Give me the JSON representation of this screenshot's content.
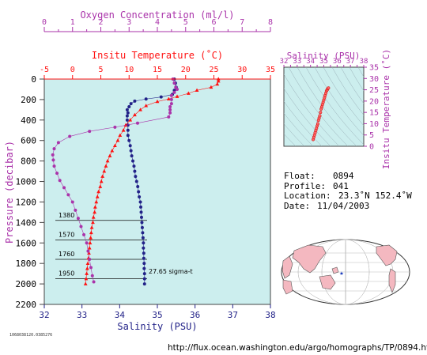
{
  "colors": {
    "oxygen": "#aa33aa",
    "temperature": "#ff1111",
    "salinity": "#222288",
    "panel_bg": "#cceeee",
    "land": "#f4b8c0"
  },
  "chart_data": [
    {
      "type": "scatter",
      "axes": {
        "oxygen": {
          "label": "Oxygen Concentration (ml/l)",
          "range": [
            0,
            8
          ],
          "ticks": [
            "0",
            "1",
            "2",
            "3",
            "4",
            "5",
            "6",
            "7",
            "8"
          ]
        },
        "temperature": {
          "label": "Insitu Temperature (˚C)",
          "range": [
            -5,
            35
          ],
          "ticks": [
            "-5",
            "0",
            "5",
            "10",
            "15",
            "20",
            "25",
            "30",
            "35"
          ]
        },
        "salinity": {
          "label": "Salinity (PSU)",
          "range": [
            32,
            38
          ],
          "ticks": [
            "32",
            "33",
            "34",
            "35",
            "36",
            "37",
            "38"
          ]
        },
        "pressure": {
          "label": "Pressure (decibar)",
          "range": [
            0,
            2200
          ],
          "reversed": true,
          "ticks": [
            "0",
            "200",
            "400",
            "600",
            "800",
            "1000",
            "1200",
            "1400",
            "1600",
            "1800",
            "2000",
            "2200"
          ]
        }
      },
      "series": [
        {
          "key": "salinity",
          "marker": "circle",
          "points": [
            [
              35.45,
              0
            ],
            [
              35.48,
              40
            ],
            [
              35.5,
              80
            ],
            [
              35.45,
              110
            ],
            [
              35.4,
              150
            ],
            [
              35.1,
              175
            ],
            [
              34.7,
              195
            ],
            [
              34.4,
              215
            ],
            [
              34.3,
              240
            ],
            [
              34.25,
              270
            ],
            [
              34.2,
              300
            ],
            [
              34.22,
              330
            ],
            [
              34.2,
              360
            ],
            [
              34.2,
              400
            ],
            [
              34.22,
              450
            ],
            [
              34.22,
              500
            ],
            [
              34.22,
              550
            ],
            [
              34.25,
              600
            ],
            [
              34.28,
              650
            ],
            [
              34.3,
              700
            ],
            [
              34.32,
              750
            ],
            [
              34.35,
              800
            ],
            [
              34.38,
              850
            ],
            [
              34.4,
              900
            ],
            [
              34.42,
              950
            ],
            [
              34.45,
              1000
            ],
            [
              34.48,
              1050
            ],
            [
              34.5,
              1100
            ],
            [
              34.52,
              1150
            ],
            [
              34.55,
              1200
            ],
            [
              34.56,
              1250
            ],
            [
              34.57,
              1300
            ],
            [
              34.58,
              1350
            ],
            [
              34.59,
              1400
            ],
            [
              34.6,
              1450
            ],
            [
              34.61,
              1500
            ],
            [
              34.62,
              1550
            ],
            [
              34.63,
              1600
            ],
            [
              34.63,
              1650
            ],
            [
              34.64,
              1700
            ],
            [
              34.64,
              1750
            ],
            [
              34.65,
              1800
            ],
            [
              34.65,
              1850
            ],
            [
              34.66,
              1900
            ],
            [
              34.66,
              1950
            ],
            [
              34.66,
              2000
            ]
          ]
        },
        {
          "key": "temperature",
          "marker": "triangle",
          "points": [
            [
              25.8,
              0
            ],
            [
              25.8,
              20
            ],
            [
              25.6,
              50
            ],
            [
              24.5,
              80
            ],
            [
              22,
              110
            ],
            [
              20.5,
              140
            ],
            [
              18.5,
              170
            ],
            [
              17,
              195
            ],
            [
              15,
              220
            ],
            [
              13,
              260
            ],
            [
              12,
              300
            ],
            [
              11,
              350
            ],
            [
              10.2,
              400
            ],
            [
              9.4,
              450
            ],
            [
              9,
              500
            ],
            [
              8.4,
              550
            ],
            [
              8,
              600
            ],
            [
              7.5,
              650
            ],
            [
              7,
              700
            ],
            [
              6.6,
              750
            ],
            [
              6.2,
              800
            ],
            [
              5.9,
              850
            ],
            [
              5.6,
              900
            ],
            [
              5.3,
              950
            ],
            [
              5.1,
              1000
            ],
            [
              4.9,
              1050
            ],
            [
              4.6,
              1100
            ],
            [
              4.4,
              1150
            ],
            [
              4.2,
              1200
            ],
            [
              4,
              1250
            ],
            [
              3.9,
              1300
            ],
            [
              3.7,
              1350
            ],
            [
              3.6,
              1400
            ],
            [
              3.4,
              1450
            ],
            [
              3.3,
              1500
            ],
            [
              3.2,
              1550
            ],
            [
              3.1,
              1600
            ],
            [
              3,
              1650
            ],
            [
              2.9,
              1700
            ],
            [
              2.8,
              1750
            ],
            [
              2.7,
              1800
            ],
            [
              2.6,
              1850
            ],
            [
              2.5,
              1900
            ],
            [
              2.4,
              1950
            ],
            [
              2.3,
              2000
            ]
          ]
        },
        {
          "key": "oxygen",
          "marker": "circle",
          "points": [
            [
              4.55,
              0
            ],
            [
              4.6,
              40
            ],
            [
              4.65,
              80
            ],
            [
              4.7,
              100
            ],
            [
              4.6,
              130
            ],
            [
              4.5,
              160
            ],
            [
              4.5,
              200
            ],
            [
              4.5,
              240
            ],
            [
              4.45,
              270
            ],
            [
              4.45,
              300
            ],
            [
              4.45,
              330
            ],
            [
              4.4,
              370
            ],
            [
              3.3,
              430
            ],
            [
              2.5,
              470
            ],
            [
              1.6,
              510
            ],
            [
              0.9,
              560
            ],
            [
              0.5,
              620
            ],
            [
              0.35,
              680
            ],
            [
              0.3,
              740
            ],
            [
              0.32,
              790
            ],
            [
              0.35,
              850
            ],
            [
              0.45,
              920
            ],
            [
              0.55,
              990
            ],
            [
              0.7,
              1060
            ],
            [
              0.85,
              1130
            ],
            [
              1.0,
              1200
            ],
            [
              1.1,
              1280
            ],
            [
              1.2,
              1360
            ],
            [
              1.3,
              1440
            ],
            [
              1.4,
              1520
            ],
            [
              1.5,
              1600
            ],
            [
              1.55,
              1680
            ],
            [
              1.6,
              1760
            ],
            [
              1.65,
              1840
            ],
            [
              1.7,
              1920
            ],
            [
              1.75,
              1980
            ]
          ]
        }
      ],
      "isopycnals": [
        {
          "label": "1380",
          "pressure": 1380
        },
        {
          "label": "1570",
          "pressure": 1570
        },
        {
          "label": "1760",
          "pressure": 1760
        },
        {
          "label": "1950",
          "pressure": 1950
        }
      ],
      "isopycnal_note": "27.65 sigma-t"
    },
    {
      "type": "scatter",
      "axes": {
        "salinity": {
          "label": "Salinity (PSU)",
          "range": [
            32,
            38
          ],
          "ticks": [
            "32",
            "33",
            "34",
            "35",
            "36",
            "37",
            "38"
          ]
        },
        "temperature": {
          "label": "Insitu Temperature (˚C)",
          "range": [
            0,
            35
          ],
          "ticks": [
            "0",
            "5",
            "10",
            "15",
            "20",
            "25",
            "30",
            "35"
          ]
        }
      },
      "points": [
        [
          34.2,
          3
        ],
        [
          34.25,
          4
        ],
        [
          34.3,
          5
        ],
        [
          34.35,
          6
        ],
        [
          34.4,
          7
        ],
        [
          34.45,
          8
        ],
        [
          34.5,
          9
        ],
        [
          34.55,
          10
        ],
        [
          34.6,
          11.5
        ],
        [
          34.65,
          12.5
        ],
        [
          34.7,
          13.5
        ],
        [
          34.75,
          15
        ],
        [
          34.8,
          16.5
        ],
        [
          34.85,
          17.5
        ],
        [
          34.9,
          18.5
        ],
        [
          34.95,
          19.5
        ],
        [
          35.0,
          20.5
        ],
        [
          35.05,
          21.5
        ],
        [
          35.1,
          22.5
        ],
        [
          35.15,
          23.5
        ],
        [
          35.2,
          24.5
        ],
        [
          35.25,
          25
        ],
        [
          35.3,
          25.5
        ],
        [
          35.35,
          25.8
        ]
      ]
    }
  ],
  "info": {
    "float_label": "Float:",
    "float_value": "0894",
    "profile_label": "Profile:",
    "profile_value": "041",
    "location_label": "Location:",
    "location_value": "23.3˚N  152.4˚W",
    "date_label": "Date:",
    "date_value": "11/04/2003"
  },
  "small_id": "1068038120.0385276",
  "source_url": "http://flux.ocean.washington.edu/argo/homographs/TP/0894.html"
}
